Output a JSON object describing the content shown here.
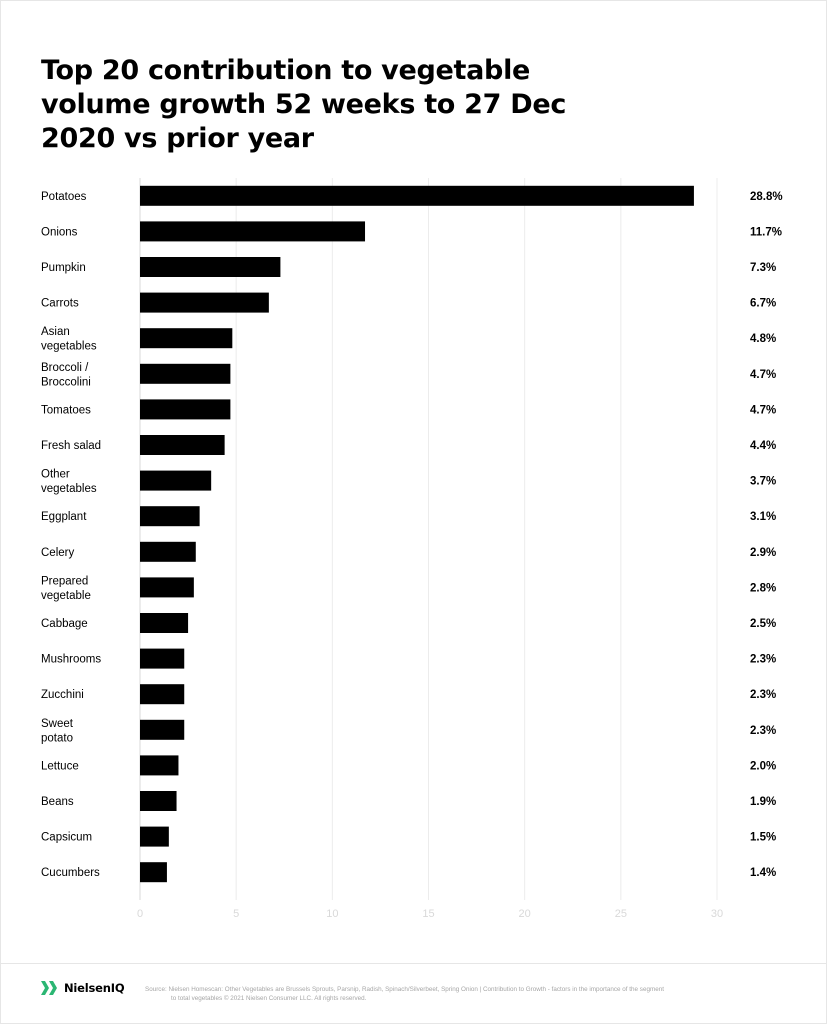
{
  "title": "Top 20 contribution to vegetable volume growth 52 weeks to 27 Dec 2020 vs prior year",
  "chart_data": {
    "type": "bar",
    "orientation": "horizontal",
    "title": "Top 20 contribution to vegetable volume growth 52 weeks to 27 Dec 2020 vs prior year",
    "categories": [
      "Potatoes",
      "Onions",
      "Pumpkin",
      "Carrots",
      "Asian vegetables",
      "Broccoli / Broccolini",
      "Tomatoes",
      "Fresh salad",
      "Other vegetables",
      "Eggplant",
      "Celery",
      "Prepared vegetable",
      "Cabbage",
      "Mushrooms",
      "Zucchini",
      "Sweet potato",
      "Lettuce",
      "Beans",
      "Capsicum",
      "Cucumbers"
    ],
    "category_lines": [
      [
        "Potatoes"
      ],
      [
        "Onions"
      ],
      [
        "Pumpkin"
      ],
      [
        "Carrots"
      ],
      [
        "Asian",
        "vegetables"
      ],
      [
        "Broccoli /",
        "Broccolini"
      ],
      [
        "Tomatoes"
      ],
      [
        "Fresh salad"
      ],
      [
        "Other",
        "vegetables"
      ],
      [
        "Eggplant"
      ],
      [
        "Celery"
      ],
      [
        "Prepared",
        "vegetable"
      ],
      [
        "Cabbage"
      ],
      [
        "Mushrooms"
      ],
      [
        "Zucchini"
      ],
      [
        "Sweet",
        "potato"
      ],
      [
        "Lettuce"
      ],
      [
        "Beans"
      ],
      [
        "Capsicum"
      ],
      [
        "Cucumbers"
      ]
    ],
    "values": [
      28.8,
      11.7,
      7.3,
      6.7,
      4.8,
      4.7,
      4.7,
      4.4,
      3.7,
      3.1,
      2.9,
      2.8,
      2.5,
      2.3,
      2.3,
      2.3,
      2.0,
      1.9,
      1.5,
      1.4
    ],
    "value_labels": [
      "28.8%",
      "11.7%",
      "7.3%",
      "6.7%",
      "4.8%",
      "4.7%",
      "4.7%",
      "4.4%",
      "3.7%",
      "3.1%",
      "2.9%",
      "2.8%",
      "2.5%",
      "2.3%",
      "2.3%",
      "2.3%",
      "2.0%",
      "1.9%",
      "1.5%",
      "1.4%"
    ],
    "xlim": [
      0,
      30
    ],
    "xticks": [
      0,
      5,
      10,
      15,
      20,
      25,
      30
    ],
    "xlabel": "",
    "ylabel": "",
    "grid": true,
    "bar_color": "#000000",
    "grid_color": "#ececec",
    "tick_color": "#d9d9d9"
  },
  "footer": {
    "brand": "NielsenIQ",
    "brand_color": "#2bb673",
    "source_line1": "Source: Nielsen Homescan: Other Vegetables are Brussels Sprouts, Parsnip, Radish, Spinach/Silverbeet, Spring Onion | Contribution to Growth - factors in the importance of the segment",
    "source_line2": "to total vegetables  © 2021 Nielsen Consumer LLC. All rights reserved."
  }
}
